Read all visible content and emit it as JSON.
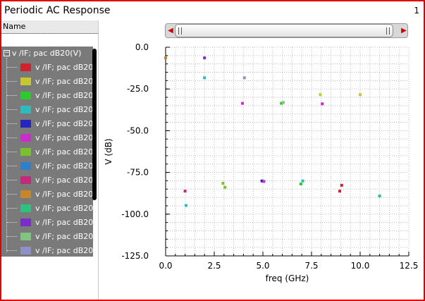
{
  "window": {
    "title": "Periodic AC Response",
    "number": "1"
  },
  "legend": {
    "header_label": "Name",
    "group_toggle": "−",
    "group_label": "v /IF; pac dB20(V)",
    "items": [
      {
        "label": "v /IF; pac dB20(",
        "color": "#d1202e"
      },
      {
        "label": "v /IF; pac dB20(",
        "color": "#c8c82a"
      },
      {
        "label": "v /IF; pac dB20(",
        "color": "#29cc29"
      },
      {
        "label": "v /IF; pac dB20(",
        "color": "#2bbdbd"
      },
      {
        "label": "v /IF; pac dB20(",
        "color": "#2525c2"
      },
      {
        "label": "v /IF; pac dB20(",
        "color": "#cc2ccc"
      },
      {
        "label": "v /IF; pac dB20(",
        "color": "#79c229"
      },
      {
        "label": "v /IF; pac dB20(",
        "color": "#2e7fcc"
      },
      {
        "label": "v /IF; pac dB20(",
        "color": "#c4287a"
      },
      {
        "label": "v /IF; pac dB20(",
        "color": "#c98526"
      },
      {
        "label": "v /IF; pac dB20(",
        "color": "#2ac47e"
      },
      {
        "label": "v /IF; pac dB20(",
        "color": "#7b2ccc"
      },
      {
        "label": "v /IF; pac dB20(",
        "color": "#7fc47f"
      },
      {
        "label": "v /IF; pac dB20(",
        "color": "#8f8fc9"
      }
    ]
  },
  "scroll": {
    "left_arrow": "◀",
    "right_arrow": "▶"
  },
  "chart_data": {
    "type": "scatter",
    "xlabel": "freq (GHz)",
    "ylabel": "V (dB)",
    "xlim": [
      0,
      12.5
    ],
    "ylim": [
      -125,
      0
    ],
    "xticks": [
      0,
      2.5,
      5,
      7.5,
      10,
      12.5
    ],
    "xtick_labels": [
      "0.0",
      "2.5",
      "5.0",
      "7.5",
      "10.0",
      "12.5"
    ],
    "yticks": [
      0,
      -25,
      -50,
      -75,
      -100,
      -125
    ],
    "ytick_labels": [
      "0.0",
      "-25.0",
      "-50.0",
      "-75.0",
      "-100.0",
      "-125.0"
    ],
    "grid": true,
    "points": [
      {
        "x": 0.0,
        "y": -6.4,
        "color": "#c98526"
      },
      {
        "x": 1.0,
        "y": -86.2,
        "color": "#c4287a"
      },
      {
        "x": 1.05,
        "y": -94.8,
        "color": "#2bbdbd"
      },
      {
        "x": 2.0,
        "y": -6.4,
        "color": "#7b2ccc"
      },
      {
        "x": 2.0,
        "y": -18.3,
        "color": "#2bbdbd"
      },
      {
        "x": 2.95,
        "y": -81.5,
        "color": "#79c229"
      },
      {
        "x": 3.05,
        "y": -83.9,
        "color": "#79c229"
      },
      {
        "x": 3.95,
        "y": -33.6,
        "color": "#cc2ccc"
      },
      {
        "x": 4.05,
        "y": -18.3,
        "color": "#8f8fc9"
      },
      {
        "x": 4.95,
        "y": -80.1,
        "color": "#2525c2"
      },
      {
        "x": 5.05,
        "y": -80.4,
        "color": "#cc2ccc"
      },
      {
        "x": 5.95,
        "y": -33.6,
        "color": "#29cc29"
      },
      {
        "x": 6.05,
        "y": -33.1,
        "color": "#7fc47f"
      },
      {
        "x": 6.95,
        "y": -81.9,
        "color": "#29cc29"
      },
      {
        "x": 7.05,
        "y": -80.1,
        "color": "#2bbdbd"
      },
      {
        "x": 7.95,
        "y": -28.4,
        "color": "#c8c82a"
      },
      {
        "x": 8.05,
        "y": -33.9,
        "color": "#cc2ccc"
      },
      {
        "x": 8.95,
        "y": -86.2,
        "color": "#d1202e"
      },
      {
        "x": 9.05,
        "y": -82.7,
        "color": "#d1202e"
      },
      {
        "x": 10.0,
        "y": -28.4,
        "color": "#c8c82a"
      },
      {
        "x": 11.0,
        "y": -89.1,
        "color": "#2ac47e"
      }
    ]
  }
}
